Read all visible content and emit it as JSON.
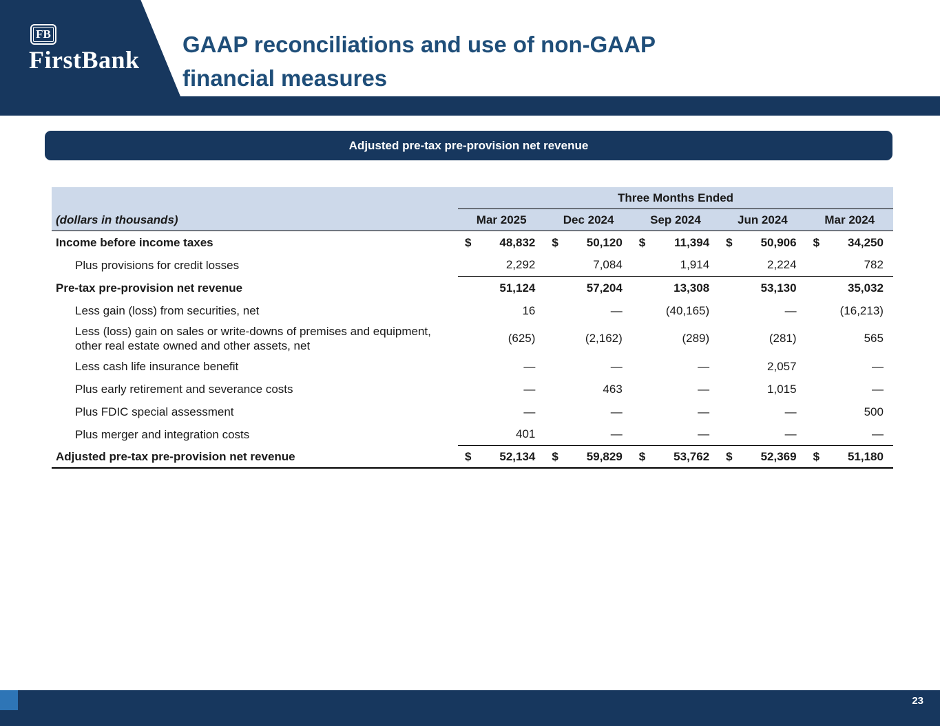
{
  "slide": {
    "logo": {
      "badge": "FB",
      "name": "FirstBank"
    },
    "title_line1": "GAAP reconciliations and use of non-GAAP",
    "title_line2": "financial measures",
    "banner": "Adjusted pre-tax pre-provision net revenue",
    "page_number": "23"
  },
  "colors": {
    "navy": "#17375e",
    "title_blue": "#1f4e79",
    "accent_blue": "#2e75b6",
    "table_header_bg": "#cdd9ea"
  },
  "table": {
    "currency_symbol": "$",
    "span_header": "Three Months Ended",
    "row_label_header": "(dollars in thousands)",
    "columns": [
      "Mar 2025",
      "Dec 2024",
      "Sep 2024",
      "Jun 2024",
      "Mar 2024"
    ],
    "rows": [
      {
        "label": "Income before income taxes",
        "bold": true,
        "indent": false,
        "dollar": true,
        "values": [
          "48,832",
          "50,120",
          "11,394",
          "50,906",
          "34,250"
        ],
        "underline": "none"
      },
      {
        "label": "Plus provisions for credit losses",
        "bold": false,
        "indent": true,
        "dollar": false,
        "values": [
          "2,292",
          "7,084",
          "1,914",
          "2,224",
          "782"
        ],
        "underline": "numeric"
      },
      {
        "label": "Pre-tax pre-provision net revenue",
        "bold": true,
        "indent": false,
        "dollar": false,
        "values": [
          "51,124",
          "57,204",
          "13,308",
          "53,130",
          "35,032"
        ],
        "underline": "none"
      },
      {
        "label": "Less gain (loss) from securities, net",
        "bold": false,
        "indent": true,
        "dollar": false,
        "values": [
          "16",
          "—",
          "(40,165)",
          "—",
          "(16,213)"
        ],
        "underline": "none"
      },
      {
        "label": "Less (loss) gain on sales or write-downs of premises and equipment, other real estate owned and other assets, net",
        "bold": false,
        "indent": true,
        "dollar": false,
        "values": [
          "(625)",
          "(2,162)",
          "(289)",
          "(281)",
          "565"
        ],
        "underline": "none"
      },
      {
        "label": "Less cash life insurance benefit",
        "bold": false,
        "indent": true,
        "dollar": false,
        "values": [
          "—",
          "—",
          "—",
          "2,057",
          "—"
        ],
        "underline": "none"
      },
      {
        "label": "Plus early retirement and severance costs",
        "bold": false,
        "indent": true,
        "dollar": false,
        "values": [
          "—",
          "463",
          "—",
          "1,015",
          "—"
        ],
        "underline": "none"
      },
      {
        "label": "Plus FDIC special assessment",
        "bold": false,
        "indent": true,
        "dollar": false,
        "values": [
          "—",
          "—",
          "—",
          "—",
          "500"
        ],
        "underline": "none"
      },
      {
        "label": "Plus merger and integration costs",
        "bold": false,
        "indent": true,
        "dollar": false,
        "values": [
          "401",
          "—",
          "—",
          "—",
          "—"
        ],
        "underline": "numeric"
      },
      {
        "label": "Adjusted pre-tax pre-provision net revenue",
        "bold": true,
        "indent": false,
        "dollar": true,
        "values": [
          "52,134",
          "59,829",
          "53,762",
          "52,369",
          "51,180"
        ],
        "underline": "full"
      }
    ]
  }
}
